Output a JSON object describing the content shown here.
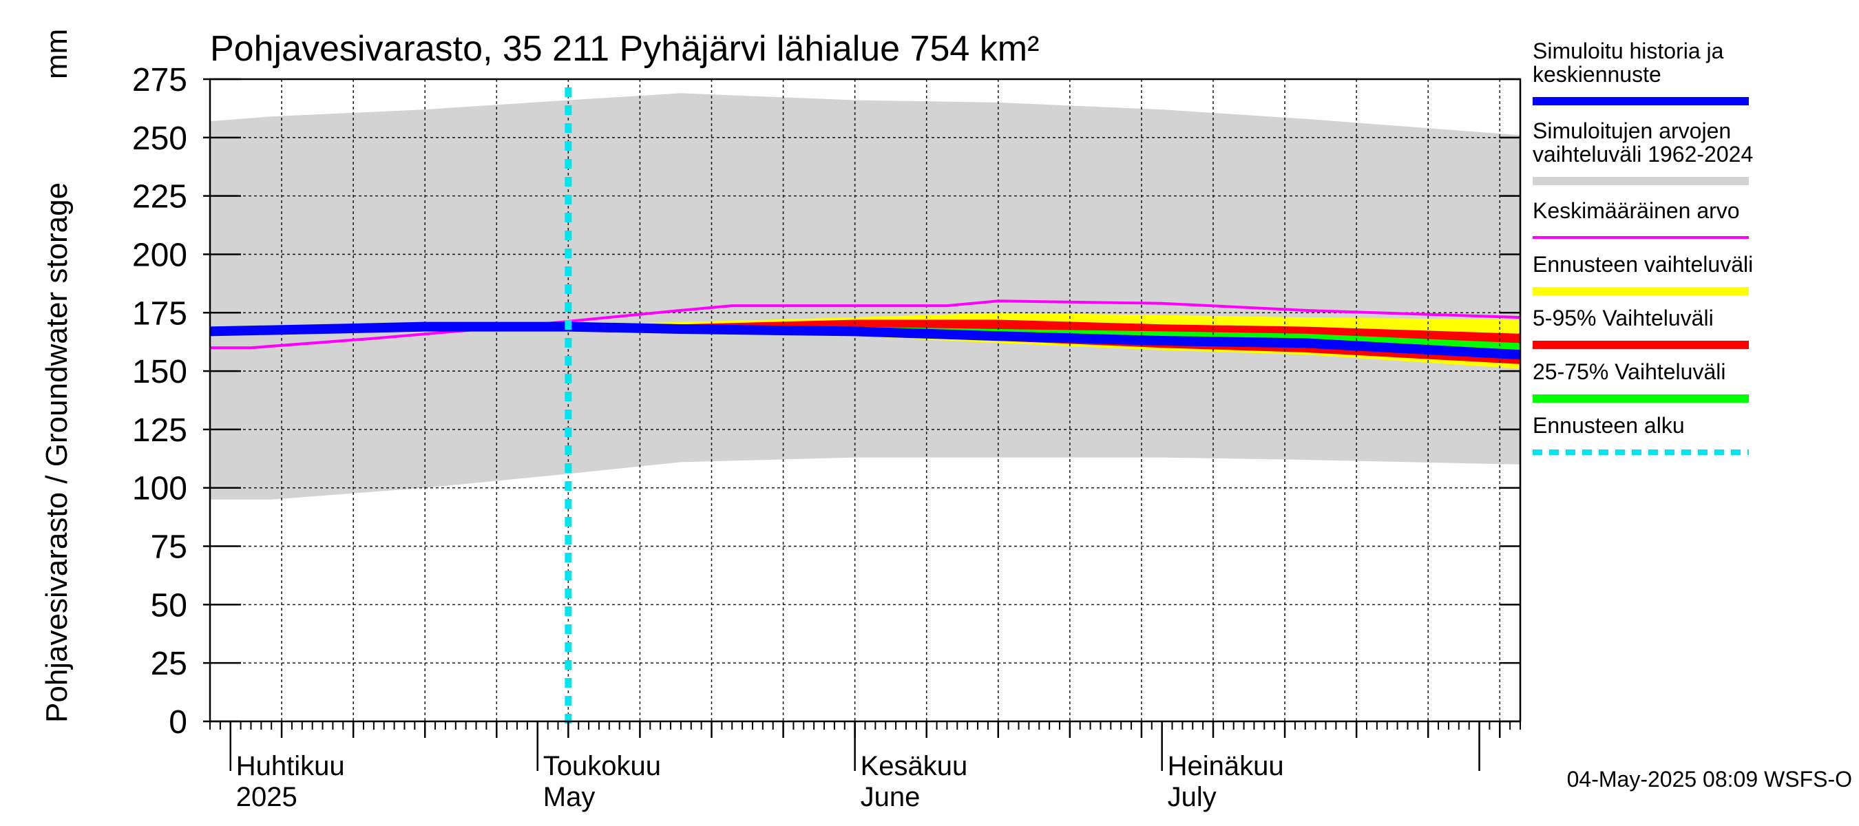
{
  "chart_data": {
    "type": "area",
    "title": "Pohjavesivarasto, 35 211 Pyhäjärvi lähialue 754 km²",
    "ylabel": "Pohjavesivarasto / Groundwater storage",
    "unit": "mm",
    "ylim": [
      0,
      275
    ],
    "yticks": [
      0,
      25,
      50,
      75,
      100,
      125,
      150,
      175,
      200,
      225,
      250,
      275
    ],
    "x_start": "2025-03-30",
    "x_end": "2025-08-05",
    "month_labels": [
      {
        "date": "2025-04-01",
        "fi": "Huhtikuu",
        "en": "2025"
      },
      {
        "date": "2025-05-01",
        "fi": "Toukokuu",
        "en": "May"
      },
      {
        "date": "2025-06-01",
        "fi": "Kesäkuu",
        "en": "June"
      },
      {
        "date": "2025-07-01",
        "fi": "Heinäkuu",
        "en": "July"
      }
    ],
    "forecast_start": "2025-05-04",
    "series": [
      {
        "name": "Simuloitujen arvojen vaihteluväli 1962-2024",
        "kind": "band",
        "color": "#d3d3d3",
        "x": [
          "2025-03-30",
          "2025-04-05",
          "2025-04-20",
          "2025-05-04",
          "2025-05-15",
          "2025-06-01",
          "2025-06-15",
          "2025-07-01",
          "2025-07-15",
          "2025-08-05"
        ],
        "low": [
          95,
          95,
          100,
          106,
          111,
          113,
          113,
          113,
          112,
          110
        ],
        "high": [
          257,
          259,
          262,
          266,
          269,
          266,
          265,
          262,
          258,
          251
        ]
      },
      {
        "name": "Ennusteen vaihteluväli",
        "kind": "band",
        "color": "#ffff00",
        "x": [
          "2025-05-04",
          "2025-05-15",
          "2025-06-01",
          "2025-06-15",
          "2025-07-01",
          "2025-07-15",
          "2025-08-05"
        ],
        "low": [
          169,
          167,
          165,
          162,
          159,
          157,
          151
        ],
        "high": [
          170,
          171,
          173,
          175,
          174,
          173,
          172
        ]
      },
      {
        "name": "5-95% Vaihteluväli",
        "kind": "band",
        "color": "#ff0000",
        "x": [
          "2025-05-04",
          "2025-05-15",
          "2025-06-01",
          "2025-06-15",
          "2025-07-01",
          "2025-07-15",
          "2025-08-05"
        ],
        "low": [
          169,
          167,
          166,
          163,
          160,
          158,
          153
        ],
        "high": [
          170,
          170,
          172,
          172,
          170,
          169,
          166
        ]
      },
      {
        "name": "25-75% Vaihteluväli",
        "kind": "band",
        "color": "#00ff00",
        "x": [
          "2025-05-04",
          "2025-05-15",
          "2025-06-01",
          "2025-06-15",
          "2025-07-01",
          "2025-07-15",
          "2025-08-05"
        ],
        "low": [
          169,
          168,
          166,
          164,
          162,
          160,
          157
        ],
        "high": [
          170,
          169,
          169,
          168,
          167,
          166,
          162
        ]
      },
      {
        "name": "Keskimääräinen arvo",
        "kind": "line",
        "color": "#ff00ff",
        "x": [
          "2025-03-30",
          "2025-04-03",
          "2025-04-15",
          "2025-05-01",
          "2025-05-15",
          "2025-05-20",
          "2025-06-01",
          "2025-06-10",
          "2025-06-15",
          "2025-07-01",
          "2025-07-15",
          "2025-08-05"
        ],
        "values": [
          160,
          160,
          164,
          170,
          176,
          178,
          178,
          178,
          180,
          179,
          176,
          173
        ]
      },
      {
        "name": "Simuloitu historia ja keskiennuste",
        "kind": "line",
        "color": "#0000ff",
        "x": [
          "2025-03-30",
          "2025-04-10",
          "2025-04-20",
          "2025-05-04",
          "2025-05-15",
          "2025-06-01",
          "2025-06-15",
          "2025-07-01",
          "2025-07-15",
          "2025-08-05"
        ],
        "values": [
          167,
          168,
          169,
          169,
          168,
          167,
          165,
          163,
          162,
          157
        ]
      }
    ]
  },
  "legend": [
    {
      "label": "Simuloitu historia ja\nkeskiennuste",
      "color": "#0000ff",
      "style": "solid"
    },
    {
      "label": "Simuloitujen arvojen\nvaihteluväli 1962-2024",
      "color": "#d3d3d3",
      "style": "solid"
    },
    {
      "label": "Keskimääräinen arvo",
      "color": "#ff00ff",
      "style": "thin"
    },
    {
      "label": "Ennusteen vaihteluväli",
      "color": "#ffff00",
      "style": "solid"
    },
    {
      "label": "5-95% Vaihteluväli",
      "color": "#ff0000",
      "style": "solid"
    },
    {
      "label": "25-75% Vaihteluväli",
      "color": "#00ff00",
      "style": "solid"
    },
    {
      "label": "Ennusteen alku",
      "color": "#00e5ee",
      "style": "dashed"
    }
  ],
  "footer": "04-May-2025 08:09 WSFS-O"
}
